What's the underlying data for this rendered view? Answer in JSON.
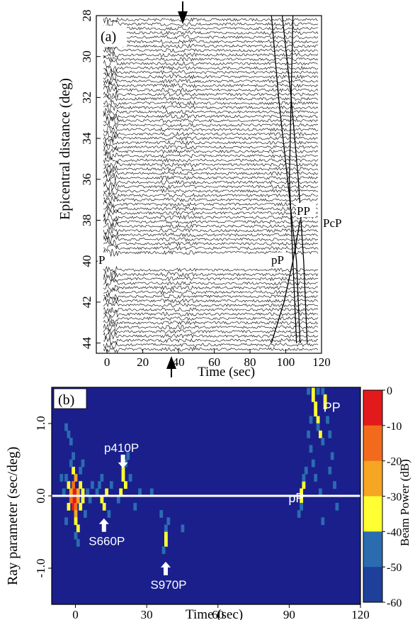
{
  "chart_data": [
    {
      "panel_label": "(a)",
      "type": "line",
      "xlabel": "Time  (sec)",
      "ylabel": "Epicentral distance  (deg)",
      "xlim": [
        -6,
        120
      ],
      "ylim": [
        28,
        44.5
      ],
      "x_ticks": [
        0,
        20,
        40,
        60,
        80,
        100,
        120
      ],
      "y_ticks": [
        28,
        30,
        32,
        34,
        36,
        38,
        40,
        42,
        44
      ],
      "trace_count": 76,
      "phase_labels": [
        "P",
        "pP",
        "PP",
        "PcP"
      ],
      "arrow_times": [
        40,
        36
      ],
      "phase_curves": [
        {
          "name": "PcP",
          "points": [
            [
              98,
              28
            ],
            [
              103,
              32
            ],
            [
              107,
              36
            ],
            [
              110,
              40
            ],
            [
              112,
              44
            ]
          ]
        },
        {
          "name": "PP",
          "points": [
            [
              92,
              28
            ],
            [
              96,
              32
            ],
            [
              101,
              36
            ],
            [
              106,
              40
            ],
            [
              108,
              44
            ]
          ]
        },
        {
          "name": "pP_upper",
          "points": [
            [
              104,
              28
            ],
            [
              103,
              32
            ],
            [
              102,
              36
            ],
            [
              104,
              40
            ],
            [
              106,
              44
            ]
          ]
        },
        {
          "name": "pP_lower",
          "points": [
            [
              92,
              44
            ],
            [
              99,
              42
            ],
            [
              104,
              40
            ],
            [
              108,
              38
            ]
          ]
        }
      ]
    },
    {
      "panel_label": "(b)",
      "type": "heatmap",
      "xlabel": "Time (sec)",
      "ylabel": "Ray parameter (sec/deg)",
      "xlim": [
        -10,
        120
      ],
      "ylim": [
        -1.5,
        1.5
      ],
      "x_ticks": [
        0,
        30,
        60,
        90,
        120
      ],
      "y_ticks": [
        {
          "value": 1.0,
          "label": "1.0"
        },
        {
          "value": 0.0,
          "label": "0.0"
        },
        {
          "value": -1.0,
          "label": "-1.0"
        }
      ],
      "colorbar": {
        "label": "Beam Power (dB)",
        "ticks": [
          "0",
          "-10",
          "-20",
          "-30",
          "-40",
          "-50",
          "-60"
        ],
        "colors": [
          "#e31a1c",
          "#f26b1d",
          "#f6a623",
          "#ffff33",
          "#2b6cb0",
          "#1e3f9a"
        ],
        "background": "#1a1f8c"
      },
      "reference_line_p": 0.0,
      "cells": [
        {
          "t": -1,
          "p": 0.05,
          "db": -5
        },
        {
          "t": -1,
          "p": -0.05,
          "db": -4
        },
        {
          "t": -1,
          "p": -0.15,
          "db": -8
        },
        {
          "t": -1,
          "p": 0.15,
          "db": -12
        },
        {
          "t": 0,
          "p": 0.05,
          "db": -8
        },
        {
          "t": 0,
          "p": -0.05,
          "db": -6
        },
        {
          "t": 0,
          "p": -0.15,
          "db": -14
        },
        {
          "t": 0,
          "p": -0.25,
          "db": -25
        },
        {
          "t": -2,
          "p": 0.05,
          "db": -20
        },
        {
          "t": -2,
          "p": -0.05,
          "db": -18
        },
        {
          "t": 1,
          "p": 0.05,
          "db": -22
        },
        {
          "t": 1,
          "p": -0.05,
          "db": -20
        },
        {
          "t": 0,
          "p": 0.25,
          "db": -28
        },
        {
          "t": -1,
          "p": 0.35,
          "db": -32
        },
        {
          "t": 0,
          "p": -0.35,
          "db": -32
        },
        {
          "t": 1,
          "p": -0.45,
          "db": -35
        },
        {
          "t": -3,
          "p": 0.15,
          "db": -35
        },
        {
          "t": -3,
          "p": -0.15,
          "db": -33
        },
        {
          "t": 2,
          "p": 0.15,
          "db": -33
        },
        {
          "t": 2,
          "p": -0.15,
          "db": -35
        },
        {
          "t": 3,
          "p": 0.05,
          "db": -38
        },
        {
          "t": 3,
          "p": -0.05,
          "db": -37
        },
        {
          "t": -4,
          "p": 0.25,
          "db": -42
        },
        {
          "t": -2,
          "p": 0.45,
          "db": -43
        },
        {
          "t": -1,
          "p": 0.55,
          "db": -45
        },
        {
          "t": 0,
          "p": -0.55,
          "db": -44
        },
        {
          "t": 1,
          "p": -0.65,
          "db": -46
        },
        {
          "t": 2,
          "p": 0.35,
          "db": -44
        },
        {
          "t": 4,
          "p": -0.25,
          "db": -44
        },
        {
          "t": 5,
          "p": 0.05,
          "db": -45
        },
        {
          "t": -5,
          "p": 0.05,
          "db": -46
        },
        {
          "t": -4,
          "p": -0.35,
          "db": -47
        },
        {
          "t": -6,
          "p": 0.25,
          "db": -48
        },
        {
          "t": 3,
          "p": 0.45,
          "db": -46
        },
        {
          "t": 6,
          "p": -0.05,
          "db": -47
        },
        {
          "t": 7,
          "p": 0.15,
          "db": -48
        },
        {
          "t": -3,
          "p": 0.85,
          "db": -48
        },
        {
          "t": -2,
          "p": 0.75,
          "db": -47
        },
        {
          "t": -4,
          "p": 0.95,
          "db": -48
        },
        {
          "t": 10,
          "p": 0.15,
          "db": -40
        },
        {
          "t": 11,
          "p": -0.05,
          "db": -34
        },
        {
          "t": 12,
          "p": -0.15,
          "db": -36
        },
        {
          "t": 13,
          "p": 0.05,
          "db": -38
        },
        {
          "t": 11,
          "p": 0.25,
          "db": -44
        },
        {
          "t": 14,
          "p": -0.25,
          "db": -44
        },
        {
          "t": 9,
          "p": 0.05,
          "db": -46
        },
        {
          "t": 15,
          "p": 0.15,
          "db": -46
        },
        {
          "t": 20,
          "p": 0.35,
          "db": -33
        },
        {
          "t": 20,
          "p": 0.25,
          "db": -34
        },
        {
          "t": 21,
          "p": 0.15,
          "db": -36
        },
        {
          "t": 19,
          "p": 0.05,
          "db": -38
        },
        {
          "t": 21,
          "p": 0.45,
          "db": -40
        },
        {
          "t": 22,
          "p": 0.55,
          "db": -44
        },
        {
          "t": 18,
          "p": -0.05,
          "db": -44
        },
        {
          "t": 23,
          "p": 0.25,
          "db": -45
        },
        {
          "t": 25,
          "p": -0.15,
          "db": -46
        },
        {
          "t": 27,
          "p": 0.05,
          "db": -47
        },
        {
          "t": 38,
          "p": -0.45,
          "db": -40
        },
        {
          "t": 38,
          "p": -0.55,
          "db": -34
        },
        {
          "t": 38,
          "p": -0.65,
          "db": -36
        },
        {
          "t": 37,
          "p": -0.75,
          "db": -42
        },
        {
          "t": 39,
          "p": -0.35,
          "db": -45
        },
        {
          "t": 36,
          "p": -0.25,
          "db": -47
        },
        {
          "t": 32,
          "p": 0.05,
          "db": -47
        },
        {
          "t": 45,
          "p": -0.45,
          "db": -48
        },
        {
          "t": 95,
          "p": -0.05,
          "db": -35
        },
        {
          "t": 95,
          "p": 0.05,
          "db": -33
        },
        {
          "t": 96,
          "p": 0.15,
          "db": -36
        },
        {
          "t": 96,
          "p": 0.25,
          "db": -40
        },
        {
          "t": 95,
          "p": -0.15,
          "db": -42
        },
        {
          "t": 97,
          "p": 0.35,
          "db": -44
        },
        {
          "t": 94,
          "p": -0.25,
          "db": -46
        },
        {
          "t": 100,
          "p": 1.45,
          "db": -34
        },
        {
          "t": 100,
          "p": 1.35,
          "db": -33
        },
        {
          "t": 101,
          "p": 1.25,
          "db": -35
        },
        {
          "t": 101,
          "p": 1.15,
          "db": -38
        },
        {
          "t": 102,
          "p": 1.05,
          "db": -37
        },
        {
          "t": 102,
          "p": 0.95,
          "db": -40
        },
        {
          "t": 103,
          "p": 0.85,
          "db": -38
        },
        {
          "t": 104,
          "p": 0.75,
          "db": -41
        },
        {
          "t": 105,
          "p": 1.35,
          "db": -36
        },
        {
          "t": 105,
          "p": 1.25,
          "db": -38
        },
        {
          "t": 104,
          "p": 1.45,
          "db": -40
        },
        {
          "t": 99,
          "p": 1.05,
          "db": -44
        },
        {
          "t": 98,
          "p": 0.85,
          "db": -45
        },
        {
          "t": 99,
          "p": 0.65,
          "db": -46
        },
        {
          "t": 100,
          "p": 0.45,
          "db": -44
        },
        {
          "t": 101,
          "p": 0.25,
          "db": -47
        },
        {
          "t": 106,
          "p": 1.05,
          "db": -45
        },
        {
          "t": 107,
          "p": 0.85,
          "db": -46
        },
        {
          "t": 108,
          "p": 0.55,
          "db": -45
        },
        {
          "t": 107,
          "p": 0.35,
          "db": -47
        },
        {
          "t": 103,
          "p": 0.05,
          "db": -46
        },
        {
          "t": 109,
          "p": 0.15,
          "db": -48
        },
        {
          "t": 104,
          "p": -0.35,
          "db": -47
        },
        {
          "t": 110,
          "p": -0.15,
          "db": -48
        },
        {
          "t": 98,
          "p": 1.45,
          "db": -46
        },
        {
          "t": 102,
          "p": 1.45,
          "db": -42
        }
      ],
      "annotations": [
        {
          "text": "p410P",
          "t": 20,
          "p": 0.55,
          "arrow": "down"
        },
        {
          "text": "S660P",
          "t": 12,
          "p": -0.35,
          "arrow": "up"
        },
        {
          "text": "S970P",
          "t": 38,
          "p": -0.95,
          "arrow": "up"
        },
        {
          "text": "pP",
          "t": 93,
          "p": -0.05
        },
        {
          "text": "PP",
          "t": 108,
          "p": 1.2
        }
      ]
    }
  ]
}
